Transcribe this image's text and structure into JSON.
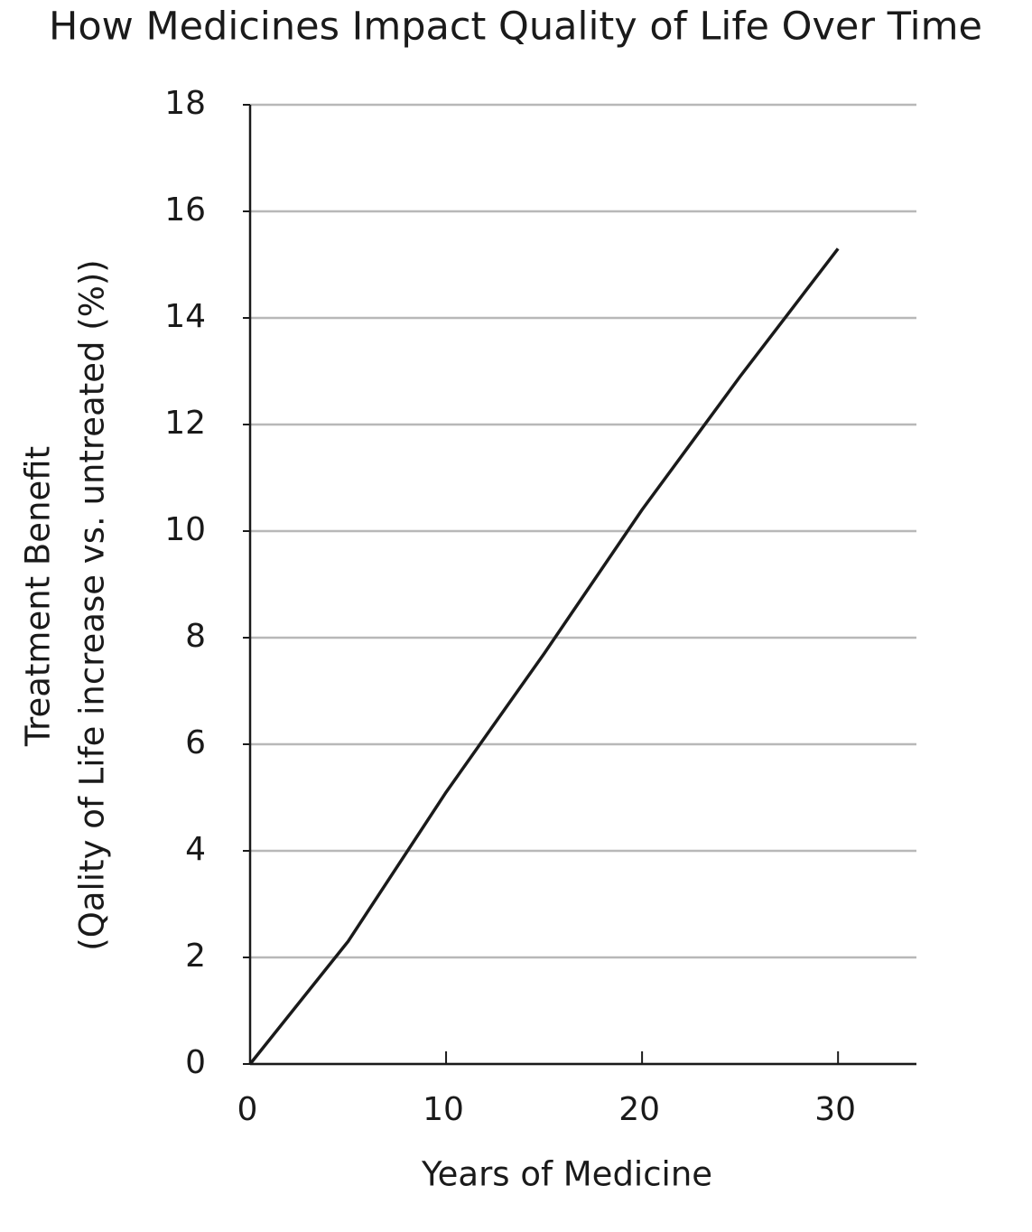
{
  "chart_data": {
    "type": "line",
    "title": "How Medicines Impact Quality of Life Over Time",
    "xlabel": "Years of Medicine",
    "ylabel": [
      "Treatment Benefit",
      "(Qality of Life increase vs. untreated (%))"
    ],
    "x": [
      0,
      5,
      10,
      15,
      20,
      25,
      30
    ],
    "series": [
      {
        "color": "#1a1a1a",
        "values": [
          0,
          2.3,
          5.1,
          7.7,
          10.4,
          12.9,
          15.3
        ]
      }
    ],
    "xlim": [
      0,
      34
    ],
    "xticks": [
      0,
      10,
      20,
      30
    ],
    "ylim": [
      0,
      18
    ],
    "yticks": [
      0,
      2,
      4,
      6,
      8,
      10,
      12,
      14,
      16,
      18
    ],
    "grid": true
  }
}
